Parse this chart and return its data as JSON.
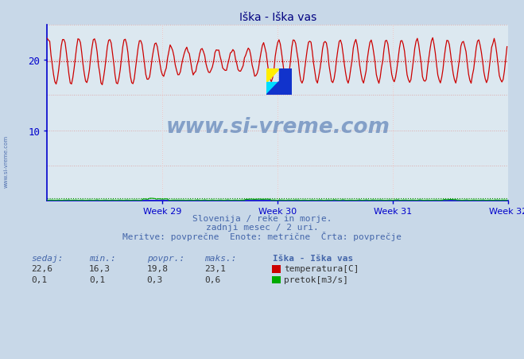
{
  "title": "Iška - Iška vas",
  "bg_color": "#c8d8e8",
  "plot_bg_color": "#dce8f0",
  "grid_color": "#ffffff",
  "title_color": "#000080",
  "axis_color": "#0000cc",
  "ytick_color": "#0000cc",
  "xtick_color": "#0000cc",
  "text_color": "#4466aa",
  "ylim": [
    0,
    25
  ],
  "yticks": [
    10,
    20
  ],
  "week_labels": [
    "Week 29",
    "Week 30",
    "Week 31",
    "Week 32"
  ],
  "temp_color": "#cc0000",
  "flow_color": "#00aa00",
  "avg_line_color": "#cc0000",
  "avg_flow_color": "#008800",
  "avg_temp": 19.8,
  "avg_flow": 0.3,
  "temp_min": 16.3,
  "temp_max": 23.1,
  "temp_current": 22.6,
  "flow_min": 0.1,
  "flow_max": 0.6,
  "flow_current": 0.1,
  "subtitle1": "Slovenija / reke in morje.",
  "subtitle2": "zadnji mesec / 2 uri.",
  "subtitle3": "Meritve: povprečne  Enote: metrične  Črta: povprečje",
  "legend_title": "Iška - Iška vas",
  "legend_temp": "temperatura[C]",
  "legend_flow": "pretok[m3/s]",
  "watermark": "www.si-vreme.com",
  "sidebar_text": "www.si-vreme.com",
  "n_points": 360,
  "temp_mean": 19.8,
  "flow_base": 0.05
}
